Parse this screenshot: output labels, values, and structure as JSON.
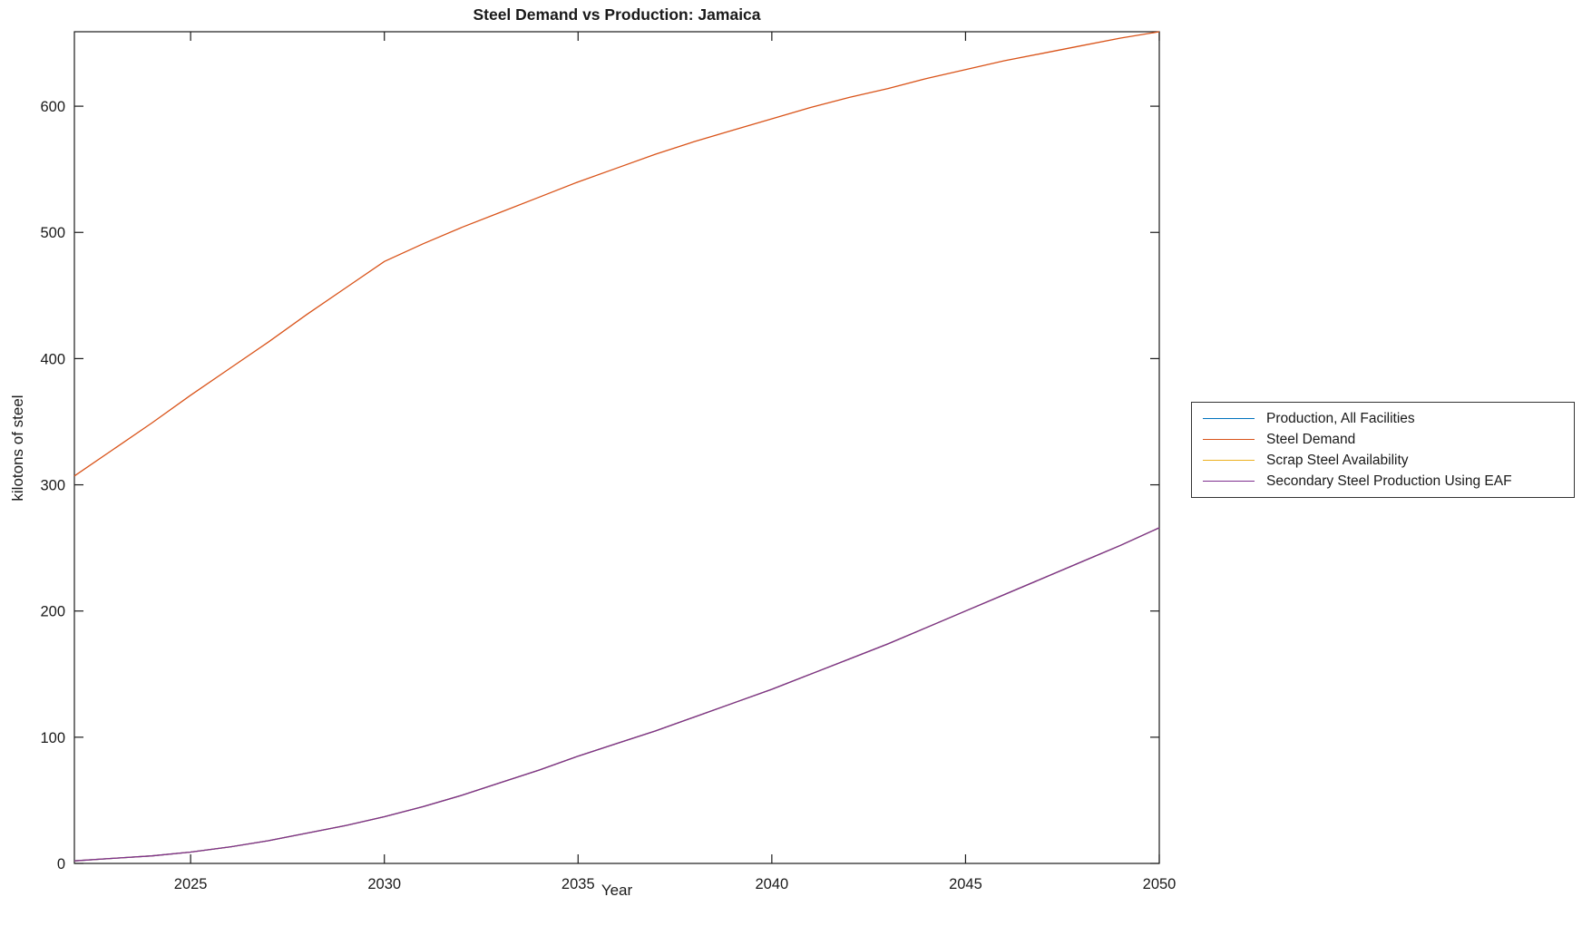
{
  "figure": {
    "title": "Steel Demand vs Production: Jamaica",
    "xlabel": "Year",
    "ylabel": "kilotons of steel"
  },
  "chart_data": {
    "type": "line",
    "title": "Steel Demand vs Production: Jamaica",
    "xlabel": "Year",
    "ylabel": "kilotons of steel",
    "xlim": [
      2022,
      2050
    ],
    "ylim": [
      0,
      659
    ],
    "x_ticks": [
      2025,
      2030,
      2035,
      2040,
      2045,
      2050
    ],
    "y_ticks": [
      0,
      100,
      200,
      300,
      400,
      500,
      600
    ],
    "grid": false,
    "legend_position": "outside-right",
    "axis_color": "#1a1a1a",
    "x": [
      2022,
      2023,
      2024,
      2025,
      2026,
      2027,
      2028,
      2029,
      2030,
      2031,
      2032,
      2033,
      2034,
      2035,
      2036,
      2037,
      2038,
      2039,
      2040,
      2041,
      2042,
      2043,
      2044,
      2045,
      2046,
      2047,
      2048,
      2049,
      2050
    ],
    "series": [
      {
        "name": "Production, All Facilities",
        "color": "#0072BD",
        "values": [
          2,
          4,
          6,
          9,
          13,
          18,
          24,
          30,
          37,
          45,
          54,
          64,
          74,
          85,
          95,
          105,
          116,
          127,
          138,
          150,
          162,
          174,
          187,
          200,
          213,
          226,
          239,
          252,
          266
        ],
        "coincides_with": "Secondary Steel Production Using EAF"
      },
      {
        "name": "Steel Demand",
        "color": "#D95319",
        "values": [
          307,
          328,
          349,
          371,
          392,
          413,
          435,
          456,
          477,
          491,
          504,
          516,
          528,
          540,
          551,
          562,
          572,
          581,
          590,
          599,
          607,
          614,
          622,
          629,
          636,
          642,
          648,
          654,
          659
        ]
      },
      {
        "name": "Scrap Steel Availability",
        "color": "#EDB120",
        "values": [
          2,
          4,
          6,
          9,
          13,
          18,
          24,
          30,
          37,
          45,
          54,
          64,
          74,
          85,
          95,
          105,
          116,
          127,
          138,
          150,
          162,
          174,
          187,
          200,
          213,
          226,
          239,
          252,
          266
        ],
        "coincides_with": "Secondary Steel Production Using EAF"
      },
      {
        "name": "Secondary Steel Production Using EAF",
        "color": "#7E2F8E",
        "values": [
          2,
          4,
          6,
          9,
          13,
          18,
          24,
          30,
          37,
          45,
          54,
          64,
          74,
          85,
          95,
          105,
          116,
          127,
          138,
          150,
          162,
          174,
          187,
          200,
          213,
          226,
          239,
          252,
          266
        ]
      }
    ]
  }
}
